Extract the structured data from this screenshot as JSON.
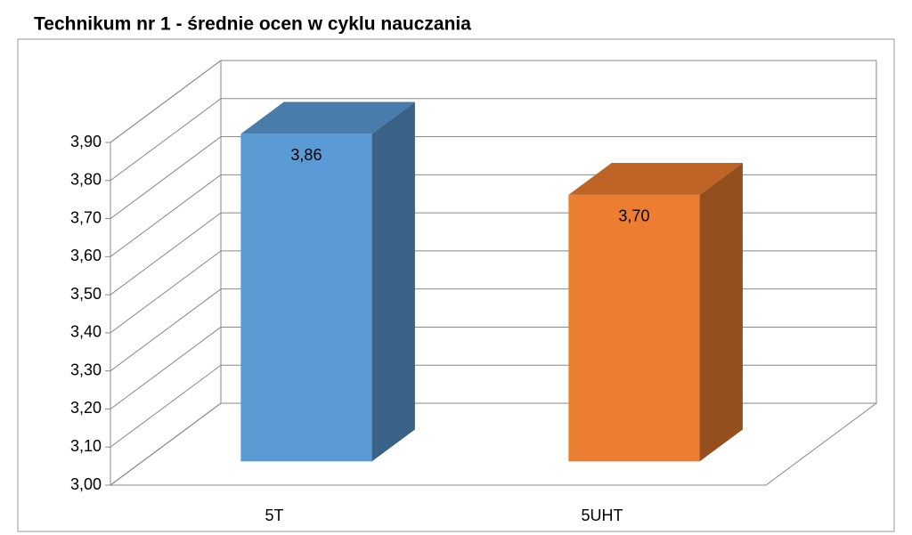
{
  "chart_data": {
    "type": "bar3d",
    "title": "Technikum nr 1 - średnie ocen w cyklu nauczania",
    "categories": [
      "5T",
      "5UHT"
    ],
    "values": [
      3.86,
      3.7
    ],
    "value_labels": [
      "3,86",
      "3,70"
    ],
    "colors": [
      "#5b9bd5",
      "#ed7d31"
    ],
    "ylim": [
      3.0,
      3.9
    ],
    "yticks": [
      {
        "value": 3.0,
        "label": "3,00"
      },
      {
        "value": 3.1,
        "label": "3,10"
      },
      {
        "value": 3.2,
        "label": "3,20"
      },
      {
        "value": 3.3,
        "label": "3,30"
      },
      {
        "value": 3.4,
        "label": "3,40"
      },
      {
        "value": 3.5,
        "label": "3,50"
      },
      {
        "value": 3.6,
        "label": "3,60"
      },
      {
        "value": 3.7,
        "label": "3,70"
      },
      {
        "value": 3.8,
        "label": "3,80"
      },
      {
        "value": 3.9,
        "label": "3,90"
      }
    ],
    "grid": true
  }
}
